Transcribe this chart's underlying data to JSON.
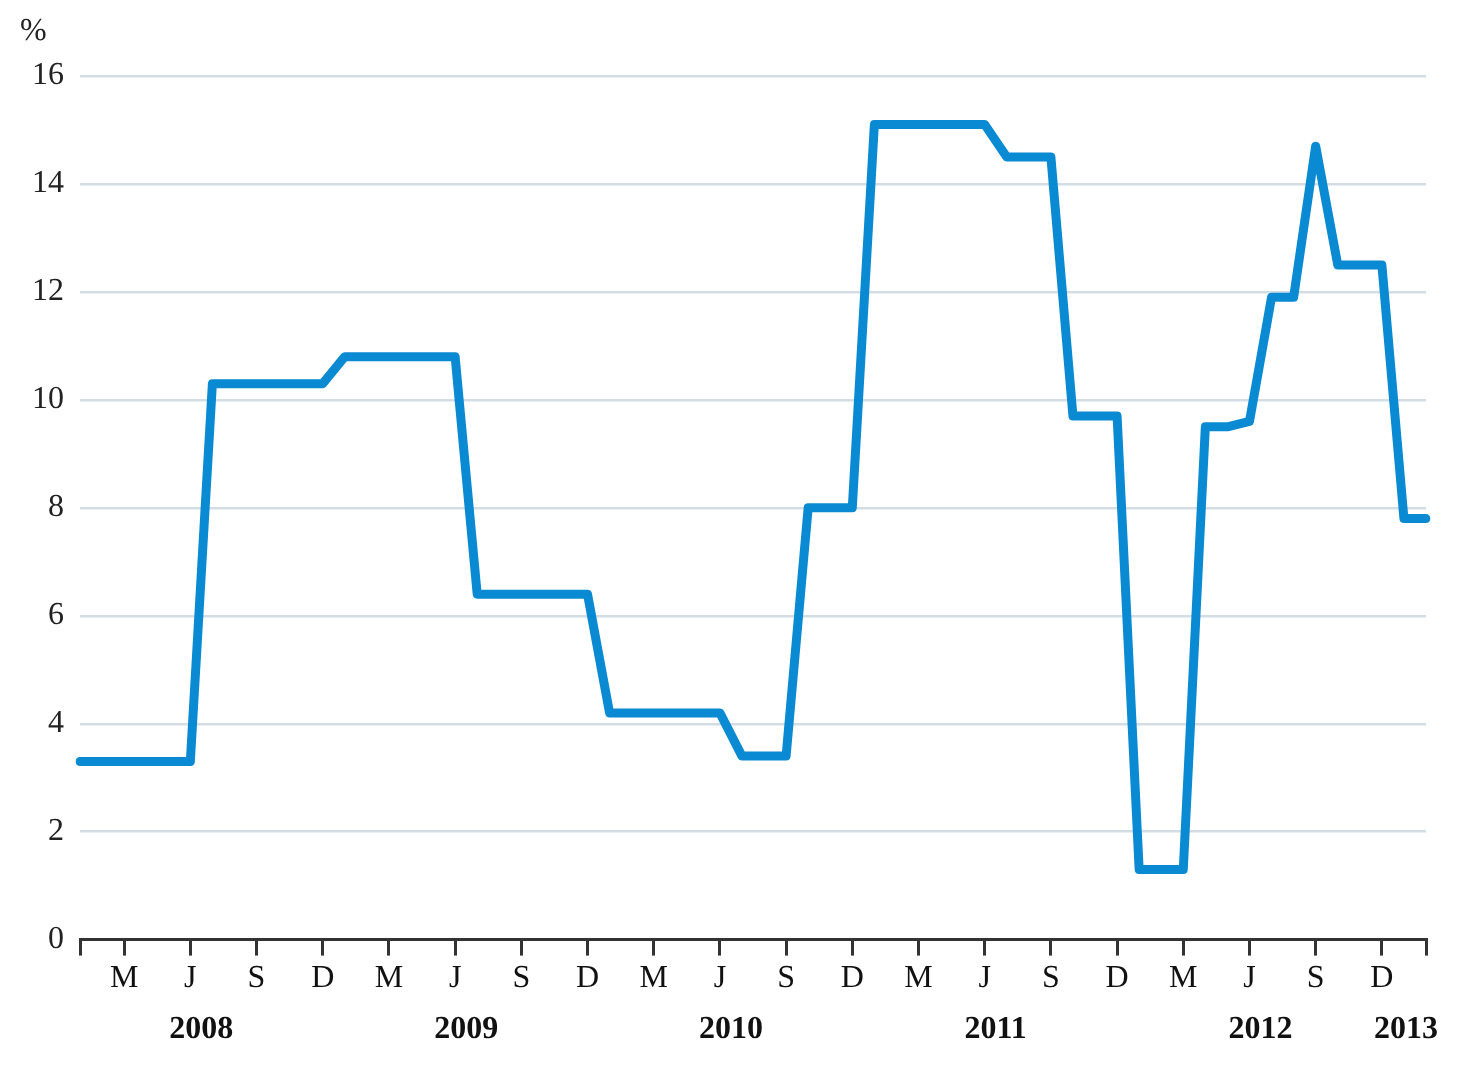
{
  "chart_data": {
    "type": "line",
    "ylabel": "%",
    "categories": [
      null,
      null,
      "M",
      null,
      null,
      "J",
      null,
      null,
      "S",
      null,
      null,
      "D",
      null,
      null,
      "M",
      null,
      null,
      "J",
      null,
      null,
      "S",
      null,
      null,
      "D",
      null,
      null,
      "M",
      null,
      null,
      "J",
      null,
      null,
      "S",
      null,
      null,
      "D",
      null,
      null,
      "M",
      null,
      null,
      "J",
      null,
      null,
      "S",
      null,
      null,
      "D",
      null,
      null,
      "M",
      null,
      null,
      "J",
      null,
      null,
      "S",
      null,
      null,
      "D",
      null,
      null
    ],
    "annotations": [
      "2008",
      "2009",
      "2010",
      "2011",
      "2012",
      "2013"
    ],
    "series": [
      {
        "color": "#0a8ad2",
        "values": [
          3.3,
          3.3,
          3.3,
          3.3,
          3.3,
          3.3,
          10.3,
          10.3,
          10.3,
          10.3,
          10.3,
          10.3,
          10.8,
          10.8,
          10.8,
          10.8,
          10.8,
          10.8,
          6.4,
          6.4,
          6.4,
          6.4,
          6.4,
          6.4,
          4.2,
          4.2,
          4.2,
          4.2,
          4.2,
          4.2,
          3.4,
          3.4,
          3.4,
          8.0,
          8.0,
          8.0,
          15.1,
          15.1,
          15.1,
          15.1,
          15.1,
          15.1,
          14.5,
          14.5,
          14.5,
          9.7,
          9.7,
          9.7,
          1.3,
          1.3,
          1.3,
          9.5,
          9.5,
          9.6,
          11.9,
          11.9,
          14.7,
          12.5,
          12.5,
          12.5,
          7.8,
          7.8
        ]
      }
    ],
    "ylim": [
      0,
      16
    ],
    "yticks": [
      0,
      2,
      4,
      6,
      8,
      10,
      12,
      14,
      16
    ],
    "grid": "y",
    "legend": false,
    "marker": "none",
    "line_style": "solid"
  }
}
